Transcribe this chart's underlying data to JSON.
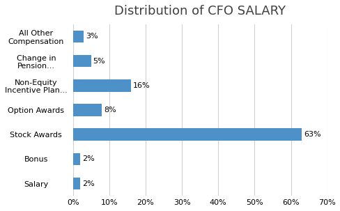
{
  "title": "Distribution of CFO SALARY",
  "categories": [
    "All Other\nCompensation",
    "Change in\nPension...",
    "Non-Equity\nIncentive Plan...",
    "Option Awards",
    "Stock Awards",
    "Bonus",
    "Salary"
  ],
  "values": [
    3,
    5,
    16,
    8,
    63,
    2,
    2
  ],
  "bar_color": "#4e90c8",
  "background_color": "#ffffff",
  "xlim": [
    0,
    70
  ],
  "xtick_values": [
    0,
    10,
    20,
    30,
    40,
    50,
    60,
    70
  ],
  "title_fontsize": 13,
  "label_fontsize": 8,
  "tick_fontsize": 8,
  "bar_height": 0.5
}
